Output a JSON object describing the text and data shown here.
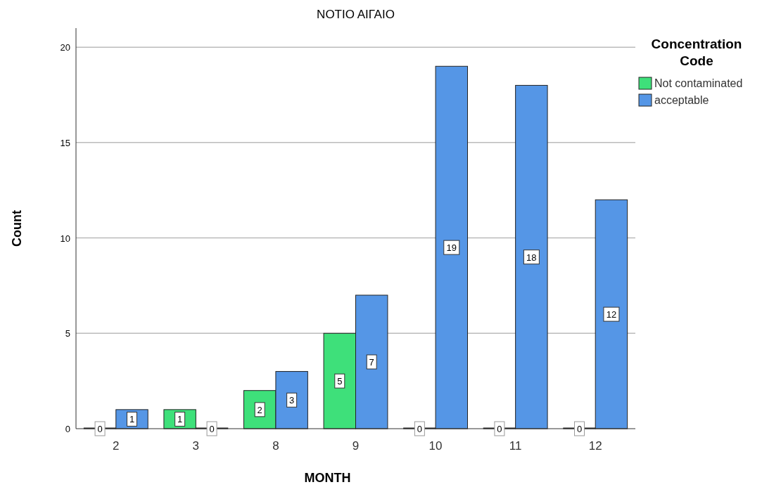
{
  "chart_data": {
    "type": "bar",
    "title": "ΝΟΤΙΟ ΑΙΓΑΙΟ",
    "xlabel": "MONTH",
    "ylabel": "Count",
    "legend_title": "Concentration Code",
    "categories": [
      "2",
      "3",
      "8",
      "9",
      "10",
      "11",
      "12"
    ],
    "series": [
      {
        "name": "Not contaminated",
        "color": "#3ee07a",
        "values": [
          0,
          1,
          2,
          5,
          0,
          0,
          0
        ]
      },
      {
        "name": "acceptable",
        "color": "#5596e6",
        "values": [
          1,
          0,
          3,
          7,
          19,
          18,
          12
        ]
      }
    ],
    "ylim": [
      0,
      21
    ],
    "yticks": [
      0,
      5,
      10,
      15,
      20
    ],
    "grid": "y",
    "legend": "top right",
    "data_labels": true
  }
}
